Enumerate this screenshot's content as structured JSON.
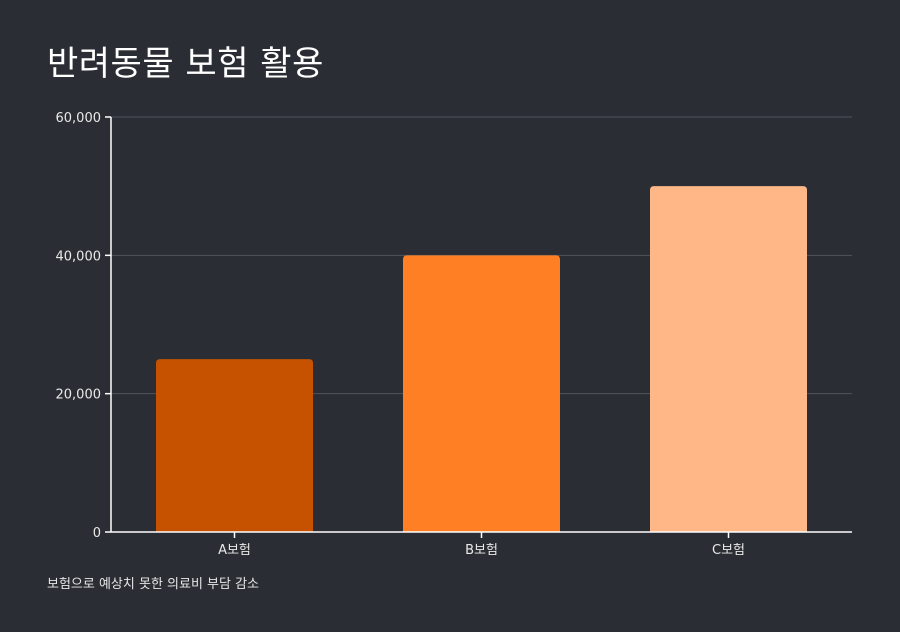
{
  "chart_data": {
    "type": "bar",
    "title": "반려동물 보험 활용",
    "caption": "보험으로 예상치 못한 의료비 부담 감소",
    "categories": [
      "A보험",
      "B보험",
      "C보험"
    ],
    "values": [
      25000,
      40000,
      50000
    ],
    "bar_colors": [
      "#c65200",
      "#ff8024",
      "#ffb787"
    ],
    "ylim": [
      0,
      60000
    ],
    "yticks": [
      0,
      20000,
      40000,
      60000
    ],
    "ytick_labels": [
      "0",
      "20,000",
      "40,000",
      "60,000"
    ],
    "grid": true,
    "legend": "none"
  }
}
